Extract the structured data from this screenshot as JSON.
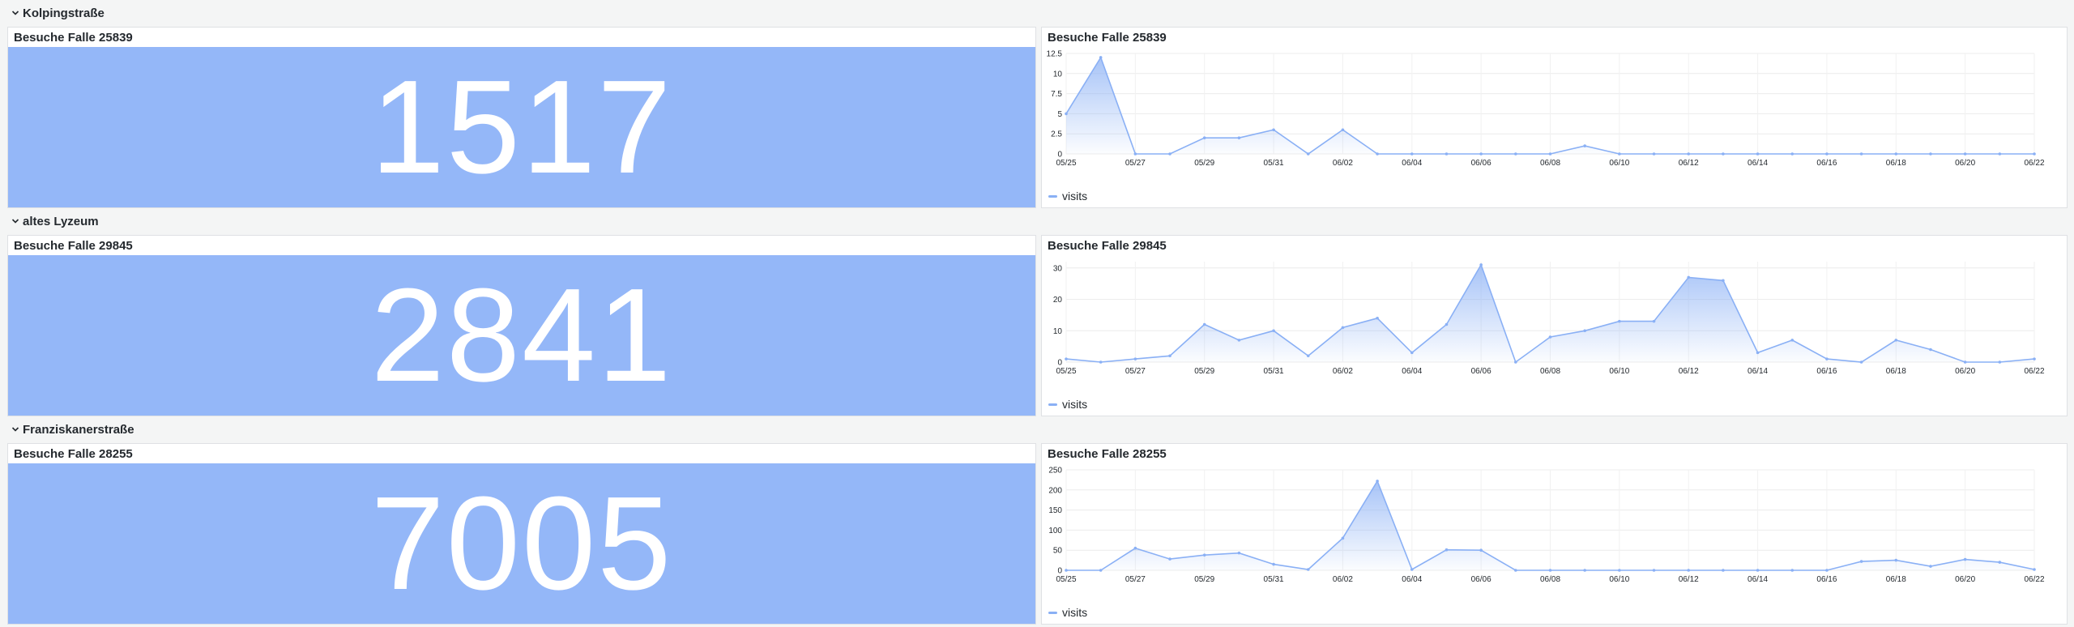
{
  "theme": {
    "accent": "#94b7f8",
    "line": "#8ab0f5"
  },
  "dates": [
    "05/25",
    "05/26",
    "05/27",
    "05/28",
    "05/29",
    "05/30",
    "05/31",
    "06/01",
    "06/02",
    "06/03",
    "06/04",
    "06/05",
    "06/06",
    "06/07",
    "06/08",
    "06/09",
    "06/10",
    "06/11",
    "06/12",
    "06/13",
    "06/14",
    "06/15",
    "06/16",
    "06/17",
    "06/18",
    "06/19",
    "06/20",
    "06/21",
    "06/22"
  ],
  "rows": [
    {
      "title": "Kolpingstraße",
      "stat": {
        "title": "Besuche Falle 25839",
        "value": "1517"
      },
      "chart": {
        "title": "Besuche Falle 25839",
        "legend": "visits",
        "chart_data": {
          "type": "area",
          "x": [
            "05/25",
            "05/26",
            "05/27",
            "05/28",
            "05/29",
            "05/30",
            "05/31",
            "06/01",
            "06/02",
            "06/03",
            "06/04",
            "06/05",
            "06/06",
            "06/07",
            "06/08",
            "06/09",
            "06/10",
            "06/11",
            "06/12",
            "06/13",
            "06/14",
            "06/15",
            "06/16",
            "06/17",
            "06/18",
            "06/19",
            "06/20",
            "06/21",
            "06/22"
          ],
          "series": [
            {
              "name": "visits",
              "values": [
                5,
                12,
                0,
                0,
                2,
                2,
                3,
                0,
                3,
                0,
                0,
                0,
                0,
                0,
                0,
                1,
                0,
                0,
                0,
                0,
                0,
                0,
                0,
                0,
                0,
                0,
                0,
                0,
                0
              ]
            }
          ],
          "ylim": [
            0,
            12.5
          ],
          "yticks": [
            "0",
            "2.5",
            "5",
            "7.5",
            "10",
            "12.5"
          ],
          "xticks": [
            "05/25",
            "05/27",
            "05/29",
            "05/31",
            "06/02",
            "06/04",
            "06/06",
            "06/08",
            "06/10",
            "06/12",
            "06/14",
            "06/16",
            "06/18",
            "06/20",
            "06/22"
          ],
          "grid": true,
          "legend_position": "bottom-left"
        }
      }
    },
    {
      "title": "altes Lyzeum",
      "stat": {
        "title": "Besuche Falle 29845",
        "value": "2841"
      },
      "chart": {
        "title": "Besuche Falle 29845",
        "legend": "visits",
        "chart_data": {
          "type": "area",
          "x": [
            "05/25",
            "05/26",
            "05/27",
            "05/28",
            "05/29",
            "05/30",
            "05/31",
            "06/01",
            "06/02",
            "06/03",
            "06/04",
            "06/05",
            "06/06",
            "06/07",
            "06/08",
            "06/09",
            "06/10",
            "06/11",
            "06/12",
            "06/13",
            "06/14",
            "06/15",
            "06/16",
            "06/17",
            "06/18",
            "06/19",
            "06/20",
            "06/21",
            "06/22"
          ],
          "series": [
            {
              "name": "visits",
              "values": [
                1,
                0,
                1,
                2,
                12,
                7,
                10,
                2,
                11,
                14,
                3,
                12,
                31,
                0,
                8,
                10,
                13,
                13,
                27,
                26,
                3,
                7,
                1,
                0,
                7,
                4,
                0,
                0,
                1
              ]
            }
          ],
          "ylim": [
            0,
            32
          ],
          "yticks": [
            "0",
            "10",
            "20",
            "30"
          ],
          "xticks": [
            "05/25",
            "05/27",
            "05/29",
            "05/31",
            "06/02",
            "06/04",
            "06/06",
            "06/08",
            "06/10",
            "06/12",
            "06/14",
            "06/16",
            "06/18",
            "06/20",
            "06/22"
          ],
          "grid": true,
          "legend_position": "bottom-left"
        }
      }
    },
    {
      "title": "Franziskanerstraße",
      "stat": {
        "title": "Besuche Falle 28255",
        "value": "7005"
      },
      "chart": {
        "title": "Besuche Falle 28255",
        "legend": "visits",
        "chart_data": {
          "type": "area",
          "x": [
            "05/25",
            "05/26",
            "05/27",
            "05/28",
            "05/29",
            "05/30",
            "05/31",
            "06/01",
            "06/02",
            "06/03",
            "06/04",
            "06/05",
            "06/06",
            "06/07",
            "06/08",
            "06/09",
            "06/10",
            "06/11",
            "06/12",
            "06/13",
            "06/14",
            "06/15",
            "06/16",
            "06/17",
            "06/18",
            "06/19",
            "06/20",
            "06/21",
            "06/22"
          ],
          "series": [
            {
              "name": "visits",
              "values": [
                0,
                0,
                55,
                28,
                38,
                43,
                15,
                2,
                80,
                222,
                2,
                51,
                50,
                0,
                0,
                0,
                0,
                0,
                0,
                0,
                0,
                0,
                0,
                22,
                25,
                10,
                27,
                20,
                2
              ]
            }
          ],
          "ylim": [
            0,
            250
          ],
          "yticks": [
            "0",
            "50",
            "100",
            "150",
            "200",
            "250"
          ],
          "xticks": [
            "05/25",
            "05/27",
            "05/29",
            "05/31",
            "06/02",
            "06/04",
            "06/06",
            "06/08",
            "06/10",
            "06/12",
            "06/14",
            "06/16",
            "06/18",
            "06/20",
            "06/22"
          ],
          "grid": true,
          "legend_position": "bottom-left"
        }
      }
    }
  ]
}
